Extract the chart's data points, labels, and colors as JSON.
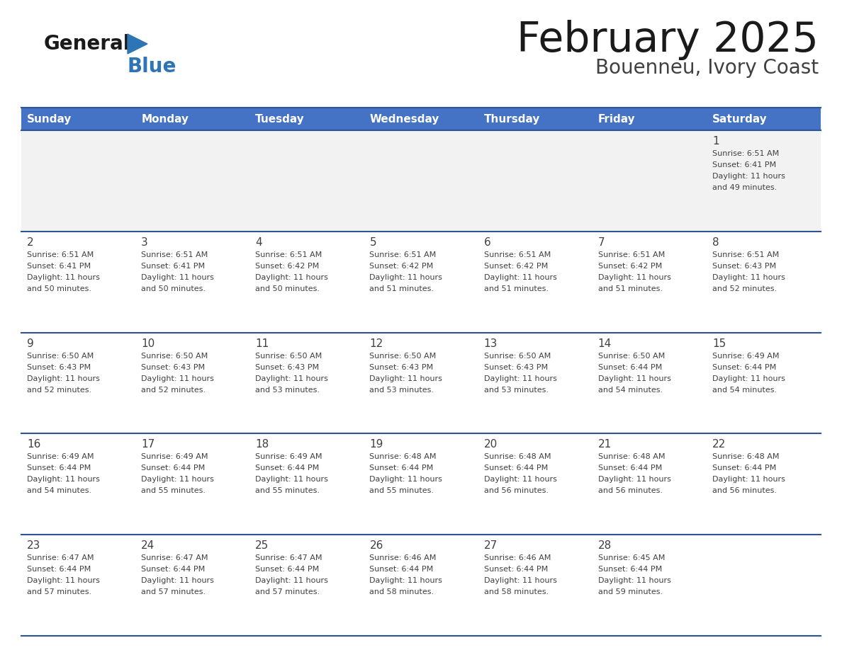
{
  "title": "February 2025",
  "subtitle": "Bouenneu, Ivory Coast",
  "header_color": "#4472C4",
  "header_text_color": "#FFFFFF",
  "days_of_week": [
    "Sunday",
    "Monday",
    "Tuesday",
    "Wednesday",
    "Thursday",
    "Friday",
    "Saturday"
  ],
  "background_color": "#FFFFFF",
  "cell_bg_row0": "#F2F2F2",
  "cell_bg_other": "#FFFFFF",
  "row_border_color": "#2F5496",
  "text_color": "#404040",
  "logo_general_color": "#1A1A1A",
  "logo_blue_color": "#2E75B6",
  "title_color": "#1A1A1A",
  "subtitle_color": "#404040",
  "calendar_data": [
    [
      null,
      null,
      null,
      null,
      null,
      null,
      {
        "day": 1,
        "sunrise": "6:51 AM",
        "sunset": "6:41 PM",
        "daylight": "11 hours and 49 minutes."
      }
    ],
    [
      {
        "day": 2,
        "sunrise": "6:51 AM",
        "sunset": "6:41 PM",
        "daylight": "11 hours and 50 minutes."
      },
      {
        "day": 3,
        "sunrise": "6:51 AM",
        "sunset": "6:41 PM",
        "daylight": "11 hours and 50 minutes."
      },
      {
        "day": 4,
        "sunrise": "6:51 AM",
        "sunset": "6:42 PM",
        "daylight": "11 hours and 50 minutes."
      },
      {
        "day": 5,
        "sunrise": "6:51 AM",
        "sunset": "6:42 PM",
        "daylight": "11 hours and 51 minutes."
      },
      {
        "day": 6,
        "sunrise": "6:51 AM",
        "sunset": "6:42 PM",
        "daylight": "11 hours and 51 minutes."
      },
      {
        "day": 7,
        "sunrise": "6:51 AM",
        "sunset": "6:42 PM",
        "daylight": "11 hours and 51 minutes."
      },
      {
        "day": 8,
        "sunrise": "6:51 AM",
        "sunset": "6:43 PM",
        "daylight": "11 hours and 52 minutes."
      }
    ],
    [
      {
        "day": 9,
        "sunrise": "6:50 AM",
        "sunset": "6:43 PM",
        "daylight": "11 hours and 52 minutes."
      },
      {
        "day": 10,
        "sunrise": "6:50 AM",
        "sunset": "6:43 PM",
        "daylight": "11 hours and 52 minutes."
      },
      {
        "day": 11,
        "sunrise": "6:50 AM",
        "sunset": "6:43 PM",
        "daylight": "11 hours and 53 minutes."
      },
      {
        "day": 12,
        "sunrise": "6:50 AM",
        "sunset": "6:43 PM",
        "daylight": "11 hours and 53 minutes."
      },
      {
        "day": 13,
        "sunrise": "6:50 AM",
        "sunset": "6:43 PM",
        "daylight": "11 hours and 53 minutes."
      },
      {
        "day": 14,
        "sunrise": "6:50 AM",
        "sunset": "6:44 PM",
        "daylight": "11 hours and 54 minutes."
      },
      {
        "day": 15,
        "sunrise": "6:49 AM",
        "sunset": "6:44 PM",
        "daylight": "11 hours and 54 minutes."
      }
    ],
    [
      {
        "day": 16,
        "sunrise": "6:49 AM",
        "sunset": "6:44 PM",
        "daylight": "11 hours and 54 minutes."
      },
      {
        "day": 17,
        "sunrise": "6:49 AM",
        "sunset": "6:44 PM",
        "daylight": "11 hours and 55 minutes."
      },
      {
        "day": 18,
        "sunrise": "6:49 AM",
        "sunset": "6:44 PM",
        "daylight": "11 hours and 55 minutes."
      },
      {
        "day": 19,
        "sunrise": "6:48 AM",
        "sunset": "6:44 PM",
        "daylight": "11 hours and 55 minutes."
      },
      {
        "day": 20,
        "sunrise": "6:48 AM",
        "sunset": "6:44 PM",
        "daylight": "11 hours and 56 minutes."
      },
      {
        "day": 21,
        "sunrise": "6:48 AM",
        "sunset": "6:44 PM",
        "daylight": "11 hours and 56 minutes."
      },
      {
        "day": 22,
        "sunrise": "6:48 AM",
        "sunset": "6:44 PM",
        "daylight": "11 hours and 56 minutes."
      }
    ],
    [
      {
        "day": 23,
        "sunrise": "6:47 AM",
        "sunset": "6:44 PM",
        "daylight": "11 hours and 57 minutes."
      },
      {
        "day": 24,
        "sunrise": "6:47 AM",
        "sunset": "6:44 PM",
        "daylight": "11 hours and 57 minutes."
      },
      {
        "day": 25,
        "sunrise": "6:47 AM",
        "sunset": "6:44 PM",
        "daylight": "11 hours and 57 minutes."
      },
      {
        "day": 26,
        "sunrise": "6:46 AM",
        "sunset": "6:44 PM",
        "daylight": "11 hours and 58 minutes."
      },
      {
        "day": 27,
        "sunrise": "6:46 AM",
        "sunset": "6:44 PM",
        "daylight": "11 hours and 58 minutes."
      },
      {
        "day": 28,
        "sunrise": "6:45 AM",
        "sunset": "6:44 PM",
        "daylight": "11 hours and 59 minutes."
      },
      null
    ]
  ]
}
